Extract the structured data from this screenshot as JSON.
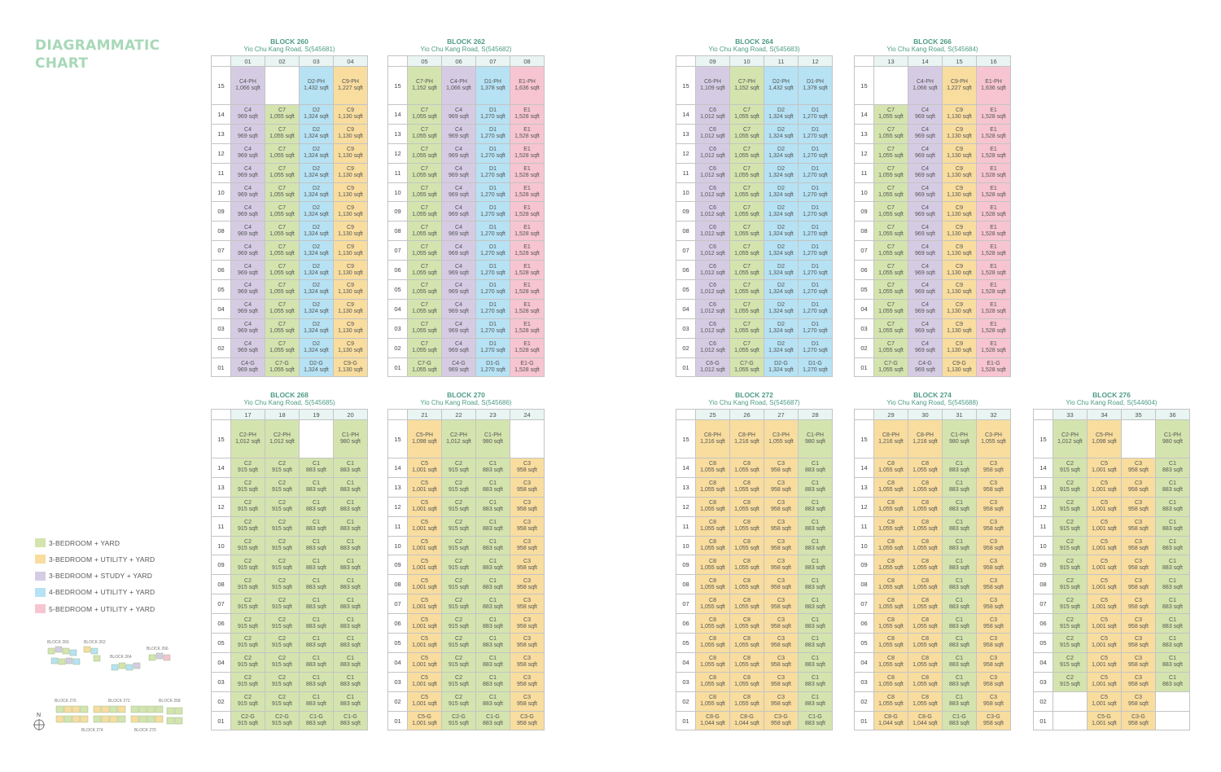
{
  "title": [
    "DIAGRAMMATIC",
    "CHART"
  ],
  "colors": {
    "green": "#d4e4ae",
    "yellow": "#f8dd9f",
    "purple": "#d5cce4",
    "blue": "#b6e2f4",
    "pink": "#f6c5d1"
  },
  "legend": [
    {
      "label": "3-BEDROOM + YARD",
      "color": "green"
    },
    {
      "label": "3-BEDROOM + UTILITY + YARD",
      "color": "yellow"
    },
    {
      "label": "3-BEDROOM + STUDY + YARD",
      "color": "purple"
    },
    {
      "label": "4-BEDROOM + UTILITY + YARD",
      "color": "blue"
    },
    {
      "label": "5-BEDROOM + UTILITY + YARD",
      "color": "pink"
    }
  ],
  "floors": [
    "15",
    "14",
    "13",
    "12",
    "11",
    "10",
    "09",
    "08",
    "07",
    "06",
    "05",
    "04",
    "03",
    "02",
    "01"
  ],
  "keyplan": {
    "labels_top": [
      "BLOCK 260",
      "BLOCK 262",
      "BLOCK 264",
      "BLOCK 266"
    ],
    "labels_bottom": [
      "BLOCK 276",
      "BLOCK 272",
      "BLOCK 268",
      "BLOCK 274",
      "BLOCK 270"
    ],
    "compass": "N"
  },
  "blocks": [
    {
      "name": "BLOCK 260",
      "address": "Yio Chu Kang Road, S(545681)",
      "columns": [
        {
          "stack": "01",
          "color": "purple",
          "ph": [
            "C4-PH",
            "1,066 sqft"
          ],
          "typical": [
            "C4",
            "969 sqft"
          ],
          "ground": [
            "C4-G",
            "969 sqft"
          ]
        },
        {
          "stack": "02",
          "color": "green",
          "ph": null,
          "typical": [
            "C7",
            "1,055 sqft"
          ],
          "ground": [
            "C7-G",
            "1,055 sqft"
          ]
        },
        {
          "stack": "03",
          "color": "blue",
          "ph": [
            "D2-PH",
            "1,432 sqft"
          ],
          "typical": [
            "D2",
            "1,324 sqft"
          ],
          "ground": [
            "D2-G",
            "1,324 sqft"
          ]
        },
        {
          "stack": "04",
          "color": "yellow",
          "ph": [
            "C9-PH",
            "1,227 sqft"
          ],
          "typical": [
            "C9",
            "1,130 sqft"
          ],
          "ground": [
            "C9-G",
            "1,130 sqft"
          ]
        }
      ]
    },
    {
      "name": "BLOCK 262",
      "address": "Yio Chu Kang Road, S(545682)",
      "columns": [
        {
          "stack": "05",
          "color": "green",
          "ph": [
            "C7-PH",
            "1,152 sqft"
          ],
          "typical": [
            "C7",
            "1,055 sqft"
          ],
          "ground": [
            "C7-G",
            "1,055 sqft"
          ]
        },
        {
          "stack": "06",
          "color": "purple",
          "ph": [
            "C4-PH",
            "1,066 sqft"
          ],
          "typical": [
            "C4",
            "969 sqft"
          ],
          "ground": [
            "C4-G",
            "969 sqft"
          ]
        },
        {
          "stack": "07",
          "color": "blue",
          "ph": [
            "D1-PH",
            "1,378 sqft"
          ],
          "typical": [
            "D1",
            "1,270 sqft"
          ],
          "ground": [
            "D1-G",
            "1,270 sqft"
          ]
        },
        {
          "stack": "08",
          "color": "pink",
          "ph": [
            "E1-PH",
            "1,636 sqft"
          ],
          "typical": [
            "E1",
            "1,528 sqft"
          ],
          "ground": [
            "E1-G",
            "1,528 sqft"
          ]
        }
      ]
    },
    {
      "name": "BLOCK 264",
      "address": "Yio Chu Kang Road, S(545683)",
      "columns": [
        {
          "stack": "09",
          "color": "purple",
          "ph": [
            "C6-PH",
            "1,109 sqft"
          ],
          "typical": [
            "C6",
            "1,012 sqft"
          ],
          "ground": [
            "C6-G",
            "1,012 sqft"
          ]
        },
        {
          "stack": "10",
          "color": "green",
          "ph": [
            "C7-PH",
            "1,152 sqft"
          ],
          "typical": [
            "C7",
            "1,055 sqft"
          ],
          "ground": [
            "C7-G",
            "1,055 sqft"
          ]
        },
        {
          "stack": "11",
          "color": "blue",
          "ph": [
            "D2-PH",
            "1,432 sqft"
          ],
          "typical": [
            "D2",
            "1,324 sqft"
          ],
          "ground": [
            "D2-G",
            "1,324 sqft"
          ]
        },
        {
          "stack": "12",
          "color": "blue",
          "ph": [
            "D1-PH",
            "1,378 sqft"
          ],
          "typical": [
            "D1",
            "1,270 sqft"
          ],
          "ground": [
            "D1-G",
            "1,270 sqft"
          ]
        }
      ]
    },
    {
      "name": "BLOCK 266",
      "address": "Yio Chu Kang Road, S(545684)",
      "columns": [
        {
          "stack": "13",
          "color": "green",
          "ph": null,
          "typical": [
            "C7",
            "1,055 sqft"
          ],
          "ground": [
            "C7-G",
            "1,055 sqft"
          ]
        },
        {
          "stack": "14",
          "color": "purple",
          "ph": [
            "C4-PH",
            "1,066 sqft"
          ],
          "typical": [
            "C4",
            "969 sqft"
          ],
          "ground": [
            "C4-G",
            "969 sqft"
          ]
        },
        {
          "stack": "15",
          "color": "yellow",
          "ph": [
            "C9-PH",
            "1,227 sqft"
          ],
          "typical": [
            "C9",
            "1,130 sqft"
          ],
          "ground": [
            "C9-G",
            "1,130 sqft"
          ]
        },
        {
          "stack": "16",
          "color": "pink",
          "ph": [
            "E1-PH",
            "1,636 sqft"
          ],
          "typical": [
            "E1",
            "1,528 sqft"
          ],
          "ground": [
            "E1-G",
            "1,528 sqft"
          ]
        }
      ]
    },
    {
      "name": "BLOCK 268",
      "address": "Yio Chu Kang Road, S(545685)",
      "columns": [
        {
          "stack": "17",
          "color": "green",
          "ph": [
            "C2-PH",
            "1,012 sqft"
          ],
          "typical": [
            "C2",
            "915 sqft"
          ],
          "ground": [
            "C2-G",
            "915 sqft"
          ]
        },
        {
          "stack": "18",
          "color": "green",
          "ph": [
            "C2-PH",
            "1,012 sqft"
          ],
          "typical": [
            "C2",
            "915 sqft"
          ],
          "ground": [
            "C2-G",
            "915 sqft"
          ]
        },
        {
          "stack": "19",
          "color": "green",
          "ph": null,
          "typical": [
            "C1",
            "883 sqft"
          ],
          "ground": [
            "C1-G",
            "883 sqft"
          ]
        },
        {
          "stack": "20",
          "color": "green",
          "ph": [
            "C1-PH",
            "980 sqft"
          ],
          "typical": [
            "C1",
            "883 sqft"
          ],
          "ground": [
            "C1-G",
            "883 sqft"
          ]
        }
      ]
    },
    {
      "name": "BLOCK 270",
      "address": "Yio Chu Kang Road, S(545686)",
      "columns": [
        {
          "stack": "21",
          "color": "yellow",
          "ph": [
            "C5-PH",
            "1,098 sqft"
          ],
          "typical": [
            "C5",
            "1,001 sqft"
          ],
          "ground": [
            "C5-G",
            "1,001 sqft"
          ]
        },
        {
          "stack": "22",
          "color": "green",
          "ph": [
            "C2-PH",
            "1,012 sqft"
          ],
          "typical": [
            "C2",
            "915 sqft"
          ],
          "ground": [
            "C2-G",
            "915 sqft"
          ]
        },
        {
          "stack": "23",
          "color": "green",
          "ph": [
            "C1-PH",
            "980 sqft"
          ],
          "typical": [
            "C1",
            "883 sqft"
          ],
          "ground": [
            "C1-G",
            "883 sqft"
          ]
        },
        {
          "stack": "24",
          "color": "yellow",
          "ph": null,
          "typical": [
            "C3",
            "958 sqft"
          ],
          "ground": [
            "C3-G",
            "958 sqft"
          ]
        }
      ]
    },
    {
      "name": "BLOCK 272",
      "address": "Yio Chu Kang Road, S(545687)",
      "columns": [
        {
          "stack": "25",
          "color": "yellow",
          "ph": [
            "C8-PH",
            "1,216 sqft"
          ],
          "typical": [
            "C8",
            "1,055 sqft"
          ],
          "ground": [
            "C8-G",
            "1,044 sqft"
          ]
        },
        {
          "stack": "26",
          "color": "yellow",
          "ph": [
            "C8-PH",
            "1,216 sqft"
          ],
          "typical": [
            "C8",
            "1,055 sqft"
          ],
          "ground": [
            "C8-G",
            "1,044 sqft"
          ]
        },
        {
          "stack": "27",
          "color": "yellow",
          "ph": [
            "C3-PH",
            "1,055 sqft"
          ],
          "typical": [
            "C3",
            "958 sqft"
          ],
          "ground": [
            "C3-G",
            "958 sqft"
          ]
        },
        {
          "stack": "28",
          "color": "green",
          "ph": [
            "C1-PH",
            "980 sqft"
          ],
          "typical": [
            "C1",
            "883 sqft"
          ],
          "ground": [
            "C1-G",
            "883 sqft"
          ]
        }
      ]
    },
    {
      "name": "BLOCK 274",
      "address": "Yio Chu Kang Road, S(545688)",
      "columns": [
        {
          "stack": "29",
          "color": "yellow",
          "ph": [
            "C8-PH",
            "1,216 sqft"
          ],
          "typical": [
            "C8",
            "1,055 sqft"
          ],
          "ground": [
            "C8-G",
            "1,044 sqft"
          ]
        },
        {
          "stack": "30",
          "color": "yellow",
          "ph": [
            "C8-PH",
            "1,216 sqft"
          ],
          "typical": [
            "C8",
            "1,055 sqft"
          ],
          "ground": [
            "C8-G",
            "1,044 sqft"
          ]
        },
        {
          "stack": "31",
          "color": "green",
          "ph": [
            "C1-PH",
            "980 sqft"
          ],
          "typical": [
            "C1",
            "883 sqft"
          ],
          "ground": [
            "C1-G",
            "883 sqft"
          ]
        },
        {
          "stack": "32",
          "color": "yellow",
          "ph": [
            "C3-PH",
            "1,055 sqft"
          ],
          "typical": [
            "C3",
            "958 sqft"
          ],
          "ground": [
            "C3-G",
            "958 sqft"
          ]
        }
      ]
    },
    {
      "name": "BLOCK 276",
      "address": "Yio Chu Kang Road, S(544604)",
      "columns": [
        {
          "stack": "33",
          "color": "green",
          "ph": [
            "C2-PH",
            "1,012 sqft"
          ],
          "typical": [
            "C2",
            "915 sqft"
          ],
          "ground": null,
          "empty_from": "02"
        },
        {
          "stack": "34",
          "color": "yellow",
          "ph": [
            "C5-PH",
            "1,098 sqft"
          ],
          "typical": [
            "C5",
            "1,001 sqft"
          ],
          "ground": [
            "C5-G",
            "1,001 sqft"
          ]
        },
        {
          "stack": "35",
          "color": "yellow",
          "ph": null,
          "typical": [
            "C3",
            "958 sqft"
          ],
          "ground": [
            "C3-G",
            "958 sqft"
          ]
        },
        {
          "stack": "36",
          "color": "green",
          "ph": [
            "C1-PH",
            "980 sqft"
          ],
          "typical": [
            "C1",
            "883 sqft"
          ],
          "ground": null,
          "empty_from": "02"
        }
      ]
    }
  ]
}
